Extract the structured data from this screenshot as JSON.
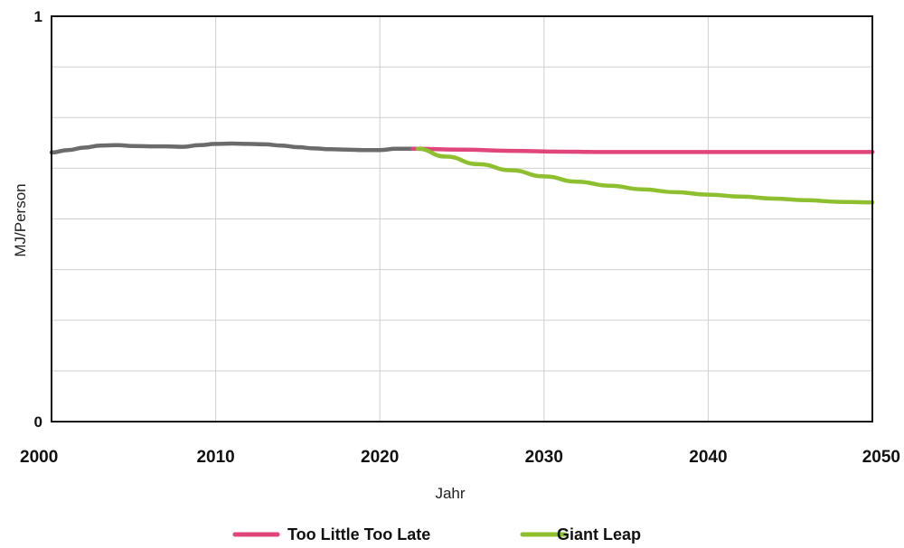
{
  "chart_data": {
    "type": "line",
    "xlabel": "Jahr",
    "ylabel": "MJ/Person",
    "xlim": [
      2000,
      2050
    ],
    "ylim": [
      0,
      1
    ],
    "x_ticks": [
      2000,
      2010,
      2020,
      2030,
      2040,
      2050
    ],
    "y_ticks": [
      0,
      1
    ],
    "y_gridlines": [
      0.125,
      0.25,
      0.375,
      0.5,
      0.625,
      0.75,
      0.875
    ],
    "grid": true,
    "legend_position": "bottom",
    "series": [
      {
        "key": "history",
        "color": "#6b6b6b",
        "in_legend": false,
        "points": [
          [
            2000,
            0.664
          ],
          [
            2001,
            0.67
          ],
          [
            2002,
            0.676
          ],
          [
            2003,
            0.681
          ],
          [
            2004,
            0.682
          ],
          [
            2005,
            0.68
          ],
          [
            2006,
            0.679
          ],
          [
            2007,
            0.679
          ],
          [
            2008,
            0.678
          ],
          [
            2009,
            0.682
          ],
          [
            2010,
            0.685
          ],
          [
            2011,
            0.686
          ],
          [
            2012,
            0.685
          ],
          [
            2013,
            0.684
          ],
          [
            2014,
            0.681
          ],
          [
            2015,
            0.677
          ],
          [
            2016,
            0.674
          ],
          [
            2017,
            0.672
          ],
          [
            2018,
            0.671
          ],
          [
            2019,
            0.67
          ],
          [
            2020,
            0.67
          ],
          [
            2021,
            0.673
          ],
          [
            2022.3,
            0.673
          ]
        ]
      },
      {
        "key": "too_little",
        "name": "Too Little Too Late",
        "color": "#e0457b",
        "in_legend": true,
        "points": [
          [
            2022,
            0.673
          ],
          [
            2025,
            0.671
          ],
          [
            2028,
            0.668
          ],
          [
            2031,
            0.666
          ],
          [
            2034,
            0.665
          ],
          [
            2040,
            0.665
          ],
          [
            2045,
            0.665
          ],
          [
            2050,
            0.665
          ]
        ]
      },
      {
        "key": "giant_leap",
        "name": "Giant Leap",
        "color": "#8dbf2e",
        "in_legend": true,
        "points": [
          [
            2022.3,
            0.673
          ],
          [
            2024,
            0.654
          ],
          [
            2026,
            0.635
          ],
          [
            2028,
            0.62
          ],
          [
            2030,
            0.605
          ],
          [
            2032,
            0.592
          ],
          [
            2034,
            0.582
          ],
          [
            2036,
            0.573
          ],
          [
            2038,
            0.566
          ],
          [
            2040,
            0.56
          ],
          [
            2042,
            0.555
          ],
          [
            2044,
            0.55
          ],
          [
            2046,
            0.546
          ],
          [
            2048,
            0.542
          ],
          [
            2050,
            0.541
          ]
        ]
      }
    ]
  }
}
